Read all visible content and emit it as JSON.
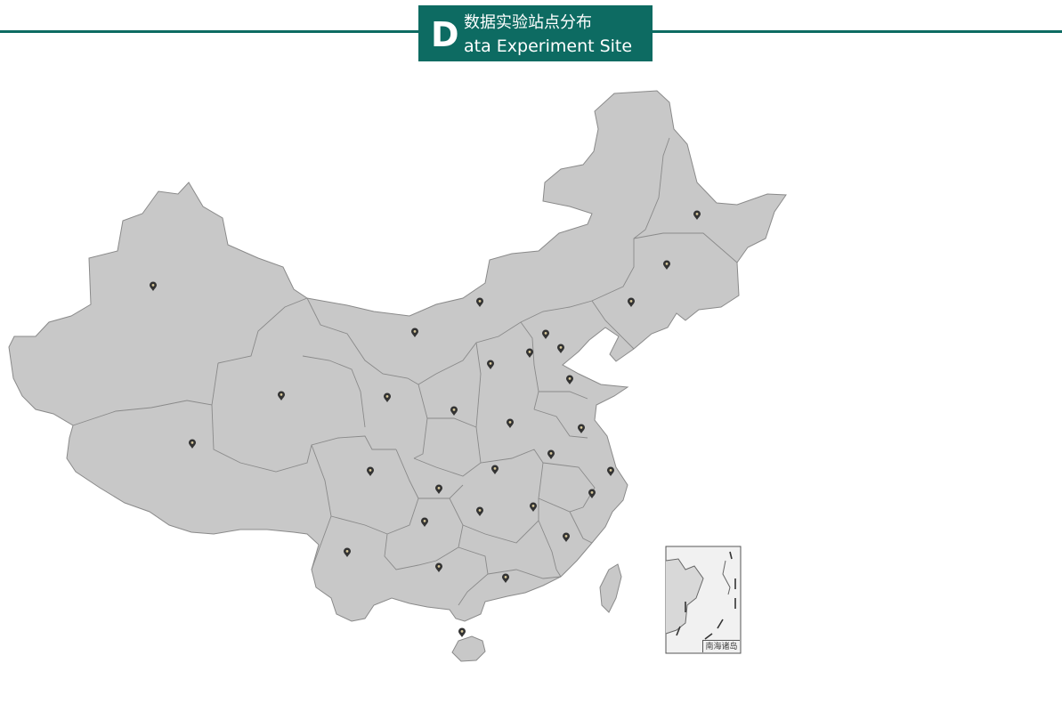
{
  "header": {
    "initial": "D",
    "title_cn": "数据实验站点分布",
    "title_en": "ata Experiment Site"
  },
  "colors": {
    "accent": "#0d6b62",
    "land": "#c8c8c8",
    "border": "#8a8a8a",
    "marker": "#333333"
  },
  "map": {
    "marker_icon": "map-pin-icon",
    "site_count": 35,
    "inset_label": "南海诸岛"
  }
}
